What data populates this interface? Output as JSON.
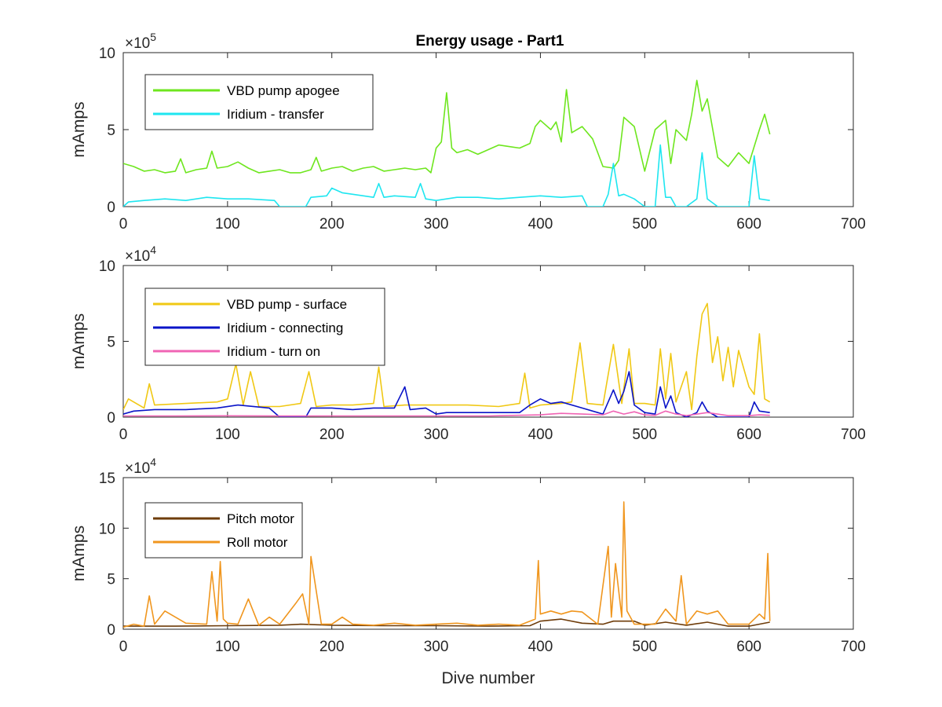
{
  "figure": {
    "title": "Energy usage - Part1"
  },
  "chart_data": [
    {
      "type": "line",
      "title": "Energy usage - Part1",
      "xlabel": "",
      "ylabel": "mAmps",
      "xlim": [
        0,
        700
      ],
      "ylim": [
        0,
        1000000
      ],
      "xticks": [
        0,
        100,
        200,
        300,
        400,
        500,
        600,
        700
      ],
      "yticks": [
        0,
        5,
        10
      ],
      "ytick_labels": [
        "0",
        "5",
        "10"
      ],
      "exponent_base": "×10",
      "exponent_power": "5",
      "legend_loc": "top-left",
      "grid": false,
      "series": [
        {
          "name": "VBD pump apogee",
          "color": "#6ee61e",
          "x": [
            0,
            10,
            20,
            30,
            40,
            50,
            55,
            60,
            70,
            80,
            85,
            90,
            100,
            110,
            120,
            130,
            140,
            150,
            160,
            170,
            180,
            185,
            190,
            200,
            210,
            220,
            230,
            240,
            250,
            260,
            270,
            280,
            290,
            295,
            300,
            305,
            310,
            315,
            320,
            330,
            340,
            350,
            360,
            370,
            380,
            390,
            395,
            400,
            410,
            415,
            420,
            425,
            430,
            440,
            450,
            460,
            470,
            475,
            480,
            490,
            500,
            510,
            520,
            525,
            530,
            540,
            545,
            550,
            555,
            560,
            570,
            580,
            590,
            600,
            610,
            615,
            620
          ],
          "y": [
            280000,
            260000,
            230000,
            240000,
            220000,
            230000,
            310000,
            220000,
            240000,
            250000,
            360000,
            250000,
            260000,
            290000,
            250000,
            220000,
            230000,
            240000,
            220000,
            220000,
            240000,
            320000,
            230000,
            250000,
            260000,
            230000,
            250000,
            260000,
            230000,
            240000,
            250000,
            240000,
            250000,
            220000,
            380000,
            420000,
            740000,
            380000,
            350000,
            370000,
            340000,
            370000,
            400000,
            390000,
            380000,
            410000,
            520000,
            560000,
            500000,
            550000,
            420000,
            760000,
            480000,
            520000,
            440000,
            260000,
            250000,
            300000,
            580000,
            520000,
            230000,
            500000,
            560000,
            280000,
            500000,
            430000,
            600000,
            820000,
            620000,
            700000,
            320000,
            260000,
            350000,
            280000,
            500000,
            600000,
            470000
          ]
        },
        {
          "name": "Iridium - transfer",
          "color": "#1ee6f0",
          "x": [
            0,
            5,
            20,
            40,
            60,
            80,
            100,
            120,
            145,
            150,
            175,
            180,
            195,
            200,
            210,
            220,
            240,
            245,
            250,
            260,
            280,
            285,
            290,
            300,
            320,
            340,
            360,
            380,
            400,
            420,
            440,
            445,
            460,
            465,
            470,
            475,
            480,
            490,
            500,
            510,
            515,
            520,
            525,
            530,
            540,
            550,
            555,
            560,
            570,
            580,
            590,
            600,
            605,
            610,
            620
          ],
          "y": [
            0,
            30000,
            40000,
            50000,
            40000,
            60000,
            50000,
            50000,
            40000,
            0,
            0,
            60000,
            70000,
            120000,
            90000,
            80000,
            60000,
            150000,
            60000,
            70000,
            60000,
            150000,
            50000,
            40000,
            60000,
            60000,
            50000,
            60000,
            70000,
            60000,
            70000,
            0,
            0,
            80000,
            280000,
            70000,
            80000,
            50000,
            0,
            0,
            400000,
            60000,
            60000,
            0,
            0,
            50000,
            350000,
            50000,
            0,
            0,
            0,
            0,
            330000,
            50000,
            40000
          ]
        }
      ]
    },
    {
      "type": "line",
      "title": "",
      "xlabel": "",
      "ylabel": "mAmps",
      "xlim": [
        0,
        700
      ],
      "ylim": [
        0,
        100000
      ],
      "xticks": [
        0,
        100,
        200,
        300,
        400,
        500,
        600,
        700
      ],
      "yticks": [
        0,
        5,
        10
      ],
      "ytick_labels": [
        "0",
        "5",
        "10"
      ],
      "exponent_base": "×10",
      "exponent_power": "4",
      "legend_loc": "top-left",
      "grid": false,
      "series": [
        {
          "name": "VBD pump - surface",
          "color": "#f0c814",
          "x": [
            0,
            5,
            20,
            25,
            30,
            60,
            90,
            100,
            108,
            115,
            122,
            130,
            150,
            170,
            178,
            185,
            200,
            220,
            240,
            245,
            250,
            270,
            300,
            330,
            360,
            380,
            385,
            390,
            400,
            420,
            430,
            438,
            445,
            460,
            470,
            478,
            485,
            490,
            500,
            510,
            515,
            520,
            525,
            530,
            540,
            545,
            550,
            555,
            560,
            565,
            570,
            575,
            580,
            585,
            590,
            600,
            605,
            610,
            615,
            620
          ],
          "y": [
            5000,
            12000,
            6000,
            22000,
            8000,
            9000,
            10000,
            12000,
            35000,
            8000,
            30000,
            7000,
            7000,
            9000,
            30000,
            7000,
            8000,
            8000,
            9000,
            33000,
            7000,
            8000,
            8000,
            8000,
            7000,
            9000,
            29000,
            6000,
            8000,
            9000,
            10000,
            49000,
            9000,
            8000,
            48000,
            9000,
            45000,
            9000,
            9000,
            8000,
            45000,
            12000,
            42000,
            10000,
            30000,
            5000,
            40000,
            68000,
            75000,
            36000,
            53000,
            24000,
            46000,
            20000,
            44000,
            20000,
            15000,
            55000,
            12000,
            10000
          ]
        },
        {
          "name": "Iridium - connecting",
          "color": "#0a14c8",
          "x": [
            0,
            10,
            30,
            60,
            90,
            110,
            140,
            150,
            175,
            180,
            200,
            220,
            240,
            260,
            270,
            275,
            290,
            300,
            310,
            330,
            360,
            380,
            390,
            400,
            410,
            420,
            440,
            460,
            470,
            475,
            480,
            485,
            490,
            500,
            510,
            515,
            520,
            525,
            530,
            540,
            550,
            555,
            560,
            570,
            590,
            600,
            605,
            610,
            620
          ],
          "y": [
            2000,
            4000,
            5000,
            5000,
            6000,
            8000,
            6000,
            0,
            0,
            6000,
            6000,
            5000,
            6000,
            6000,
            20000,
            5000,
            6000,
            2000,
            3000,
            3000,
            3000,
            3000,
            8000,
            12000,
            9000,
            10000,
            6000,
            2000,
            18000,
            9000,
            17000,
            30000,
            8000,
            3000,
            2000,
            20000,
            6000,
            14000,
            3000,
            0,
            3000,
            10000,
            4000,
            0,
            0,
            0,
            10000,
            4000,
            3000
          ]
        },
        {
          "name": "Iridium - turn on",
          "color": "#f064b4",
          "x": [
            0,
            50,
            100,
            150,
            200,
            250,
            300,
            350,
            400,
            410,
            420,
            440,
            460,
            470,
            480,
            490,
            500,
            510,
            520,
            530,
            540,
            560,
            580,
            600,
            610,
            620
          ],
          "y": [
            800,
            800,
            900,
            700,
            800,
            800,
            800,
            800,
            1500,
            2000,
            2500,
            2000,
            1500,
            4000,
            2000,
            3500,
            1500,
            1200,
            4000,
            2000,
            1000,
            3000,
            1000,
            1000,
            1500,
            1200
          ]
        }
      ]
    },
    {
      "type": "line",
      "title": "",
      "xlabel": "Dive number",
      "ylabel": "mAmps",
      "xlim": [
        0,
        700
      ],
      "ylim": [
        0,
        150000
      ],
      "xticks": [
        0,
        100,
        200,
        300,
        400,
        500,
        600,
        700
      ],
      "yticks": [
        0,
        5,
        10,
        15
      ],
      "ytick_labels": [
        "0",
        "5",
        "10",
        "15"
      ],
      "exponent_base": "×10",
      "exponent_power": "4",
      "legend_loc": "top-left",
      "grid": false,
      "series": [
        {
          "name": "Pitch motor",
          "color": "#6e3c0a",
          "x": [
            0,
            50,
            100,
            150,
            170,
            200,
            250,
            300,
            350,
            390,
            400,
            420,
            440,
            460,
            470,
            490,
            500,
            520,
            540,
            560,
            580,
            600,
            620
          ],
          "y": [
            3000,
            3000,
            3500,
            4000,
            5000,
            4000,
            3500,
            3500,
            3000,
            3500,
            8000,
            10000,
            6000,
            5000,
            8000,
            8000,
            4000,
            7000,
            4000,
            7000,
            3000,
            3000,
            7000
          ]
        },
        {
          "name": "Roll motor",
          "color": "#f0961e",
          "x": [
            0,
            10,
            20,
            25,
            30,
            40,
            60,
            80,
            85,
            90,
            93,
            96,
            100,
            110,
            120,
            130,
            140,
            150,
            165,
            172,
            178,
            180,
            190,
            200,
            210,
            220,
            240,
            260,
            280,
            300,
            320,
            340,
            360,
            380,
            395,
            398,
            400,
            410,
            420,
            430,
            440,
            455,
            465,
            468,
            472,
            478,
            480,
            483,
            490,
            500,
            510,
            520,
            530,
            535,
            540,
            550,
            560,
            570,
            580,
            600,
            610,
            615,
            618,
            620
          ],
          "y": [
            2000,
            5000,
            3000,
            33000,
            5000,
            18000,
            6000,
            5000,
            57000,
            8000,
            67000,
            10000,
            6000,
            5000,
            30000,
            4000,
            12000,
            5000,
            25000,
            35000,
            5000,
            72000,
            5000,
            5000,
            12000,
            5000,
            4000,
            6000,
            4000,
            5000,
            6000,
            4000,
            5000,
            4000,
            10000,
            68000,
            15000,
            18000,
            15000,
            18000,
            17000,
            5000,
            82000,
            12000,
            65000,
            12000,
            126000,
            18000,
            5000,
            5000,
            5000,
            20000,
            8000,
            53000,
            5000,
            18000,
            15000,
            18000,
            5000,
            5000,
            15000,
            10000,
            75000,
            8000
          ]
        }
      ]
    }
  ]
}
